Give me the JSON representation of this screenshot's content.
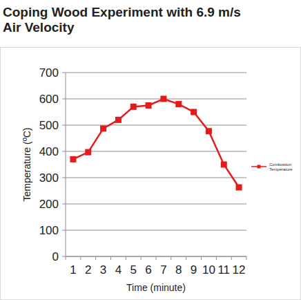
{
  "chart_data": {
    "type": "line",
    "title": "Coping Wood Experiment with 6.9 m/s Air Velocity",
    "x_label": "Time (minute)",
    "y_label": "Temperature (ºC)",
    "categories": [
      "1",
      "2",
      "3",
      "4",
      "5",
      "6",
      "7",
      "8",
      "9",
      "10",
      "11",
      "12"
    ],
    "series": [
      {
        "name": "Combustion Temperature",
        "color": "#e31b1b",
        "marker": "square",
        "values": [
          370,
          397,
          487,
          520,
          570,
          575,
          600,
          580,
          550,
          477,
          350,
          263
        ]
      }
    ],
    "ylim": [
      0,
      700
    ],
    "yticks": [
      0,
      100,
      200,
      300,
      400,
      500,
      600,
      700
    ],
    "grid": true,
    "legend": "right"
  }
}
